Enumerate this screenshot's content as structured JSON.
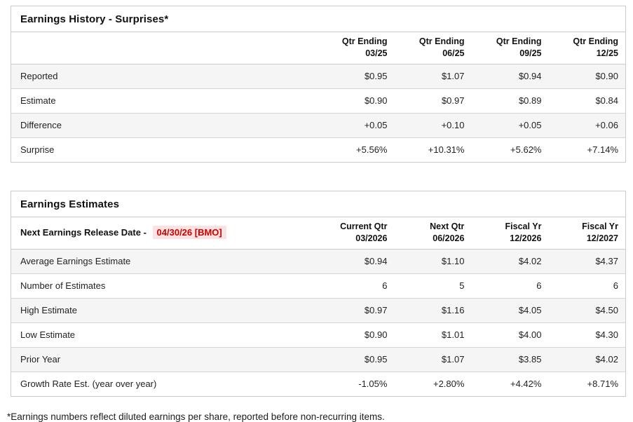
{
  "colors": {
    "positive_green": "#2e9c6e",
    "negative_red": "#cc0000",
    "release_highlight_bg": "#fbe2e2",
    "row_stripe": "#f5f5f5",
    "border": "#cbcbcb"
  },
  "earnings_history": {
    "title": "Earnings History - Surprises*",
    "columns": [
      {
        "line1": "Qtr Ending",
        "line2": "03/25"
      },
      {
        "line1": "Qtr Ending",
        "line2": "06/25"
      },
      {
        "line1": "Qtr Ending",
        "line2": "09/25"
      },
      {
        "line1": "Qtr Ending",
        "line2": "12/25"
      }
    ],
    "rows": [
      {
        "label": "Reported",
        "values": [
          "$0.95",
          "$1.07",
          "$0.94",
          "$0.90"
        ]
      },
      {
        "label": "Estimate",
        "values": [
          "$0.90",
          "$0.97",
          "$0.89",
          "$0.84"
        ]
      },
      {
        "label": "Difference",
        "values": [
          "+0.05",
          "+0.10",
          "+0.05",
          "+0.06"
        ],
        "values_color": "green"
      },
      {
        "label": "Surprise",
        "values": [
          "+5.56%",
          "+10.31%",
          "+5.62%",
          "+7.14%"
        ],
        "values_color": "green"
      }
    ]
  },
  "earnings_estimates": {
    "title": "Earnings Estimates",
    "release_date_label": "Next Earnings Release Date - ",
    "release_date_value": "04/30/26 [BMO]",
    "columns": [
      {
        "line1": "Current Qtr",
        "line2": "03/2026"
      },
      {
        "line1": "Next Qtr",
        "line2": "06/2026"
      },
      {
        "line1": "Fiscal Yr",
        "line2": "12/2026"
      },
      {
        "line1": "Fiscal Yr",
        "line2": "12/2027"
      }
    ],
    "rows": [
      {
        "label": "Average Earnings Estimate",
        "values": [
          "$0.94",
          "$1.10",
          "$4.02",
          "$4.37"
        ]
      },
      {
        "label": "Number of Estimates",
        "values": [
          "6",
          "5",
          "6",
          "6"
        ]
      },
      {
        "label": "High Estimate",
        "values": [
          "$0.97",
          "$1.16",
          "$4.05",
          "$4.50"
        ]
      },
      {
        "label": "Low Estimate",
        "values": [
          "$0.90",
          "$1.01",
          "$4.00",
          "$4.30"
        ]
      },
      {
        "label": "Prior Year",
        "values": [
          "$0.95",
          "$1.07",
          "$3.85",
          "$4.02"
        ]
      },
      {
        "label": "Growth Rate Est. (year over year)",
        "values": [
          "-1.05%",
          "+2.80%",
          "+4.42%",
          "+8.71%"
        ],
        "value_colors": [
          "red",
          "green",
          "green",
          "green"
        ]
      }
    ]
  },
  "footnote": "*Earnings numbers reflect diluted earnings per share, reported before non-recurring items."
}
